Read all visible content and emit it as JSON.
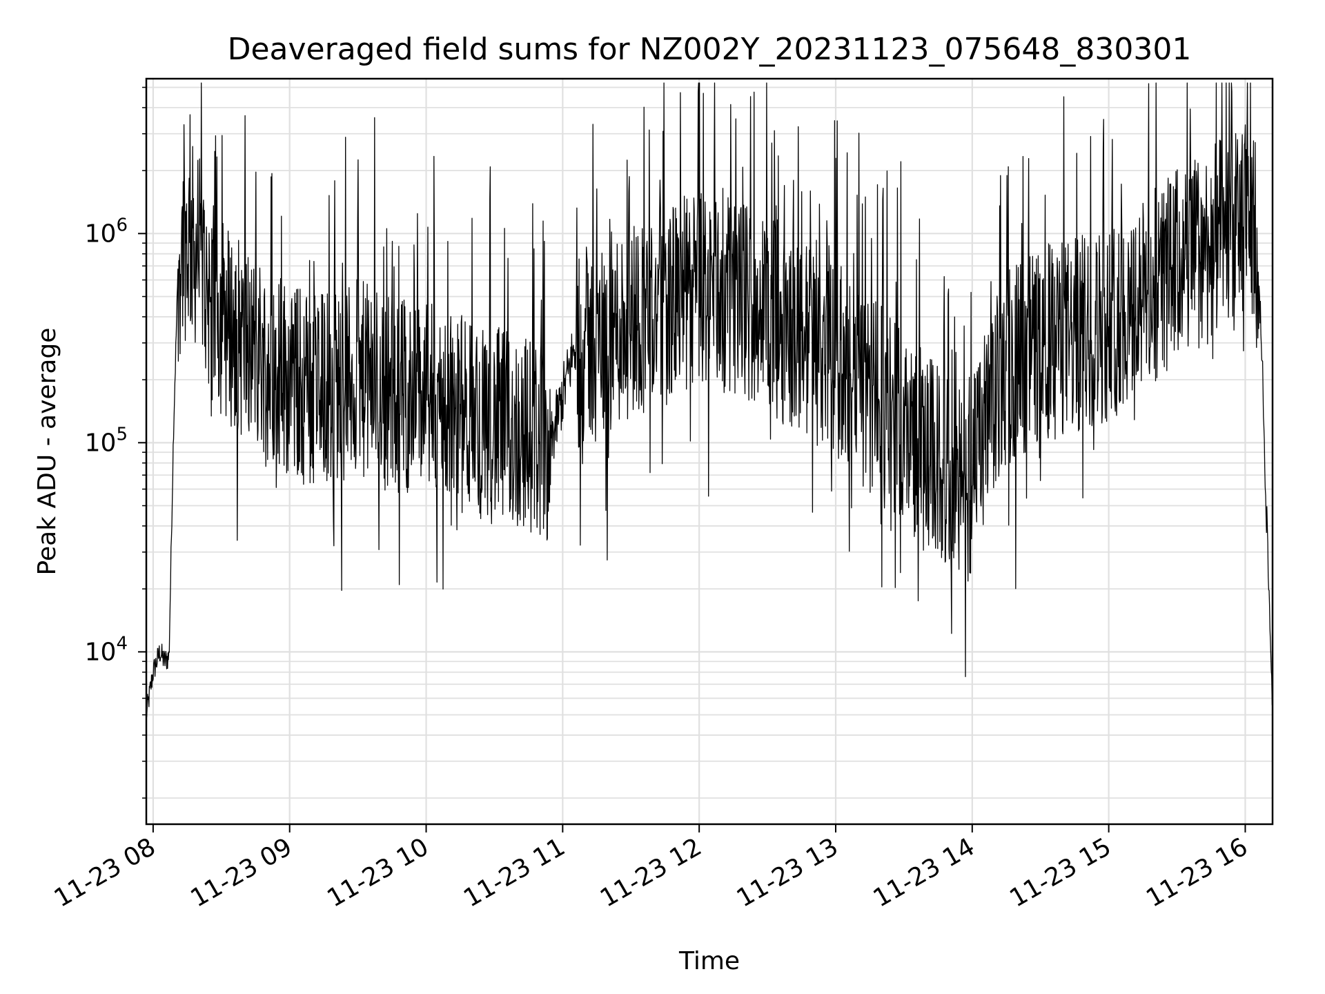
{
  "chart_data": {
    "type": "line",
    "title": "Deaveraged field sums for NZ002Y_20231123_075648_830301",
    "xlabel": "Time",
    "ylabel": "Peak ADU - average",
    "yscale": "log",
    "xlim": [
      "2023-11-23 07:57",
      "2023-11-23 16:12"
    ],
    "ylim": [
      1500,
      5500000
    ],
    "x_ticks": [
      "11-23 08",
      "11-23 09",
      "11-23 10",
      "11-23 11",
      "11-23 12",
      "11-23 13",
      "11-23 14",
      "11-23 15",
      "11-23 16"
    ],
    "y_ticks": [
      {
        "value": 10000,
        "base": "10",
        "exp": "4"
      },
      {
        "value": 100000,
        "base": "10",
        "exp": "5"
      },
      {
        "value": 1000000,
        "base": "10",
        "exp": "6"
      }
    ],
    "grid": true,
    "series_color": "#000000",
    "series": [
      {
        "x": [
          "07:57",
          "08:00",
          "08:03",
          "08:05",
          "08:07",
          "08:09",
          "08:11",
          "08:13",
          "08:16",
          "08:20",
          "08:25",
          "08:30",
          "08:35",
          "08:40",
          "08:45",
          "08:50",
          "08:55",
          "09:00",
          "09:10",
          "09:20",
          "09:30",
          "09:40",
          "09:50",
          "10:00",
          "10:15",
          "10:30",
          "10:45",
          "10:55",
          "11:05",
          "11:15",
          "11:30",
          "11:45",
          "12:00",
          "12:10",
          "12:20",
          "12:30",
          "12:40",
          "12:50",
          "13:00",
          "13:10",
          "13:20",
          "13:30",
          "13:40",
          "13:50",
          "13:58",
          "14:05",
          "14:15",
          "14:30",
          "14:45",
          "15:00",
          "15:15",
          "15:30",
          "15:45",
          "15:55",
          "16:00",
          "16:04",
          "16:07",
          "16:09",
          "16:11",
          "16:12"
        ],
        "y": [
          5000,
          8000,
          10000,
          9000,
          9500,
          120000,
          700000,
          900000,
          950000,
          800000,
          500000,
          400000,
          350000,
          300000,
          280000,
          250000,
          230000,
          200000,
          180000,
          190000,
          200000,
          190000,
          170000,
          160000,
          140000,
          120000,
          110000,
          100000,
          280000,
          300000,
          400000,
          450000,
          550000,
          520000,
          480000,
          420000,
          350000,
          300000,
          250000,
          180000,
          150000,
          120000,
          90000,
          70000,
          55000,
          110000,
          230000,
          300000,
          320000,
          380000,
          500000,
          700000,
          900000,
          1000000,
          1200000,
          1100000,
          350000,
          60000,
          12000,
          6000
        ]
      }
    ]
  }
}
